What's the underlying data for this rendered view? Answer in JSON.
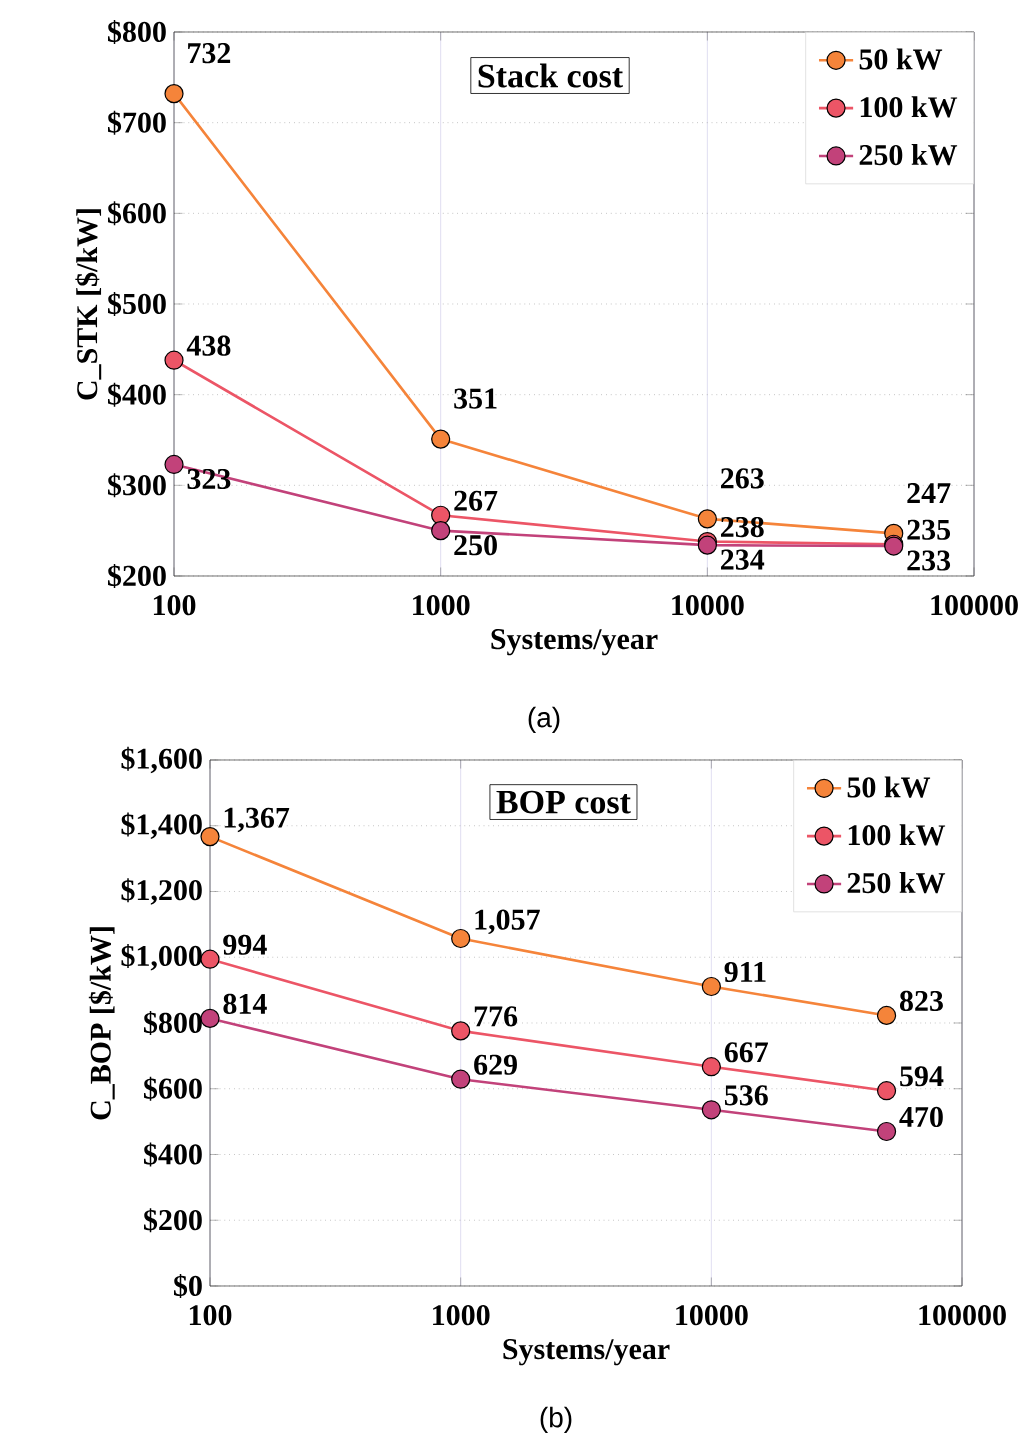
{
  "chart_data": [
    {
      "type": "line",
      "title": "Stack cost",
      "xlabel": "Systems/year",
      "ylabel": "C_STK [$/kW]",
      "log": "x",
      "grid": true,
      "legend": "top right",
      "marker": "circle",
      "line_style": "solid",
      "x": [
        100,
        1000,
        10000,
        50000
      ],
      "xlim": [
        100,
        100000
      ],
      "xticks": [
        100,
        1000,
        10000,
        100000
      ],
      "ylim": [
        200,
        800
      ],
      "yticks": [
        {
          "value": 200,
          "label": "$200"
        },
        {
          "value": 300,
          "label": "$300"
        },
        {
          "value": 400,
          "label": "$400"
        },
        {
          "value": 500,
          "label": "$500"
        },
        {
          "value": 600,
          "label": "$600"
        },
        {
          "value": 700,
          "label": "$700"
        },
        {
          "value": 800,
          "label": "$800"
        }
      ],
      "series": [
        {
          "name": "50 kW",
          "color": "#f5843a",
          "values": [
            732,
            351,
            263,
            247
          ],
          "value_labels": [
            "732",
            "351",
            "263",
            "247"
          ]
        },
        {
          "name": "100 kW",
          "color": "#ec5566",
          "values": [
            438,
            267,
            238,
            235
          ],
          "value_labels": [
            "438",
            "267",
            "238",
            "235"
          ]
        },
        {
          "name": "250 kW",
          "color": "#c2427a",
          "values": [
            323,
            250,
            234,
            233
          ],
          "value_labels": [
            "323",
            "250",
            "234",
            "233"
          ]
        }
      ],
      "annotations": [
        "(a)"
      ]
    },
    {
      "type": "line",
      "title": "BOP cost",
      "xlabel": "Systems/year",
      "ylabel": "C_BOP [$/kW]",
      "log": "x",
      "grid": true,
      "legend": "top right",
      "marker": "circle",
      "line_style": "solid",
      "x": [
        100,
        1000,
        10000,
        50000
      ],
      "xlim": [
        100,
        100000
      ],
      "xticks": [
        100,
        1000,
        10000,
        100000
      ],
      "ylim": [
        0,
        1600
      ],
      "yticks": [
        {
          "value": 0,
          "label": "$0"
        },
        {
          "value": 200,
          "label": "$200"
        },
        {
          "value": 400,
          "label": "$400"
        },
        {
          "value": 600,
          "label": "$600"
        },
        {
          "value": 800,
          "label": "$800"
        },
        {
          "value": 1000,
          "label": "$1,000"
        },
        {
          "value": 1200,
          "label": "$1,200"
        },
        {
          "value": 1400,
          "label": "$1,400"
        },
        {
          "value": 1600,
          "label": "$1,600"
        }
      ],
      "series": [
        {
          "name": "50 kW",
          "color": "#f5843a",
          "values": [
            1367,
            1057,
            911,
            823
          ],
          "value_labels": [
            "1,367",
            "1,057",
            "911",
            "823"
          ]
        },
        {
          "name": "100 kW",
          "color": "#ec5566",
          "values": [
            994,
            776,
            667,
            594
          ],
          "value_labels": [
            "994",
            "776",
            "667",
            "594"
          ]
        },
        {
          "name": "250 kW",
          "color": "#c2427a",
          "values": [
            814,
            629,
            536,
            470
          ],
          "value_labels": [
            "814",
            "629",
            "536",
            "470"
          ]
        }
      ],
      "annotations": [
        "(b)"
      ]
    }
  ]
}
